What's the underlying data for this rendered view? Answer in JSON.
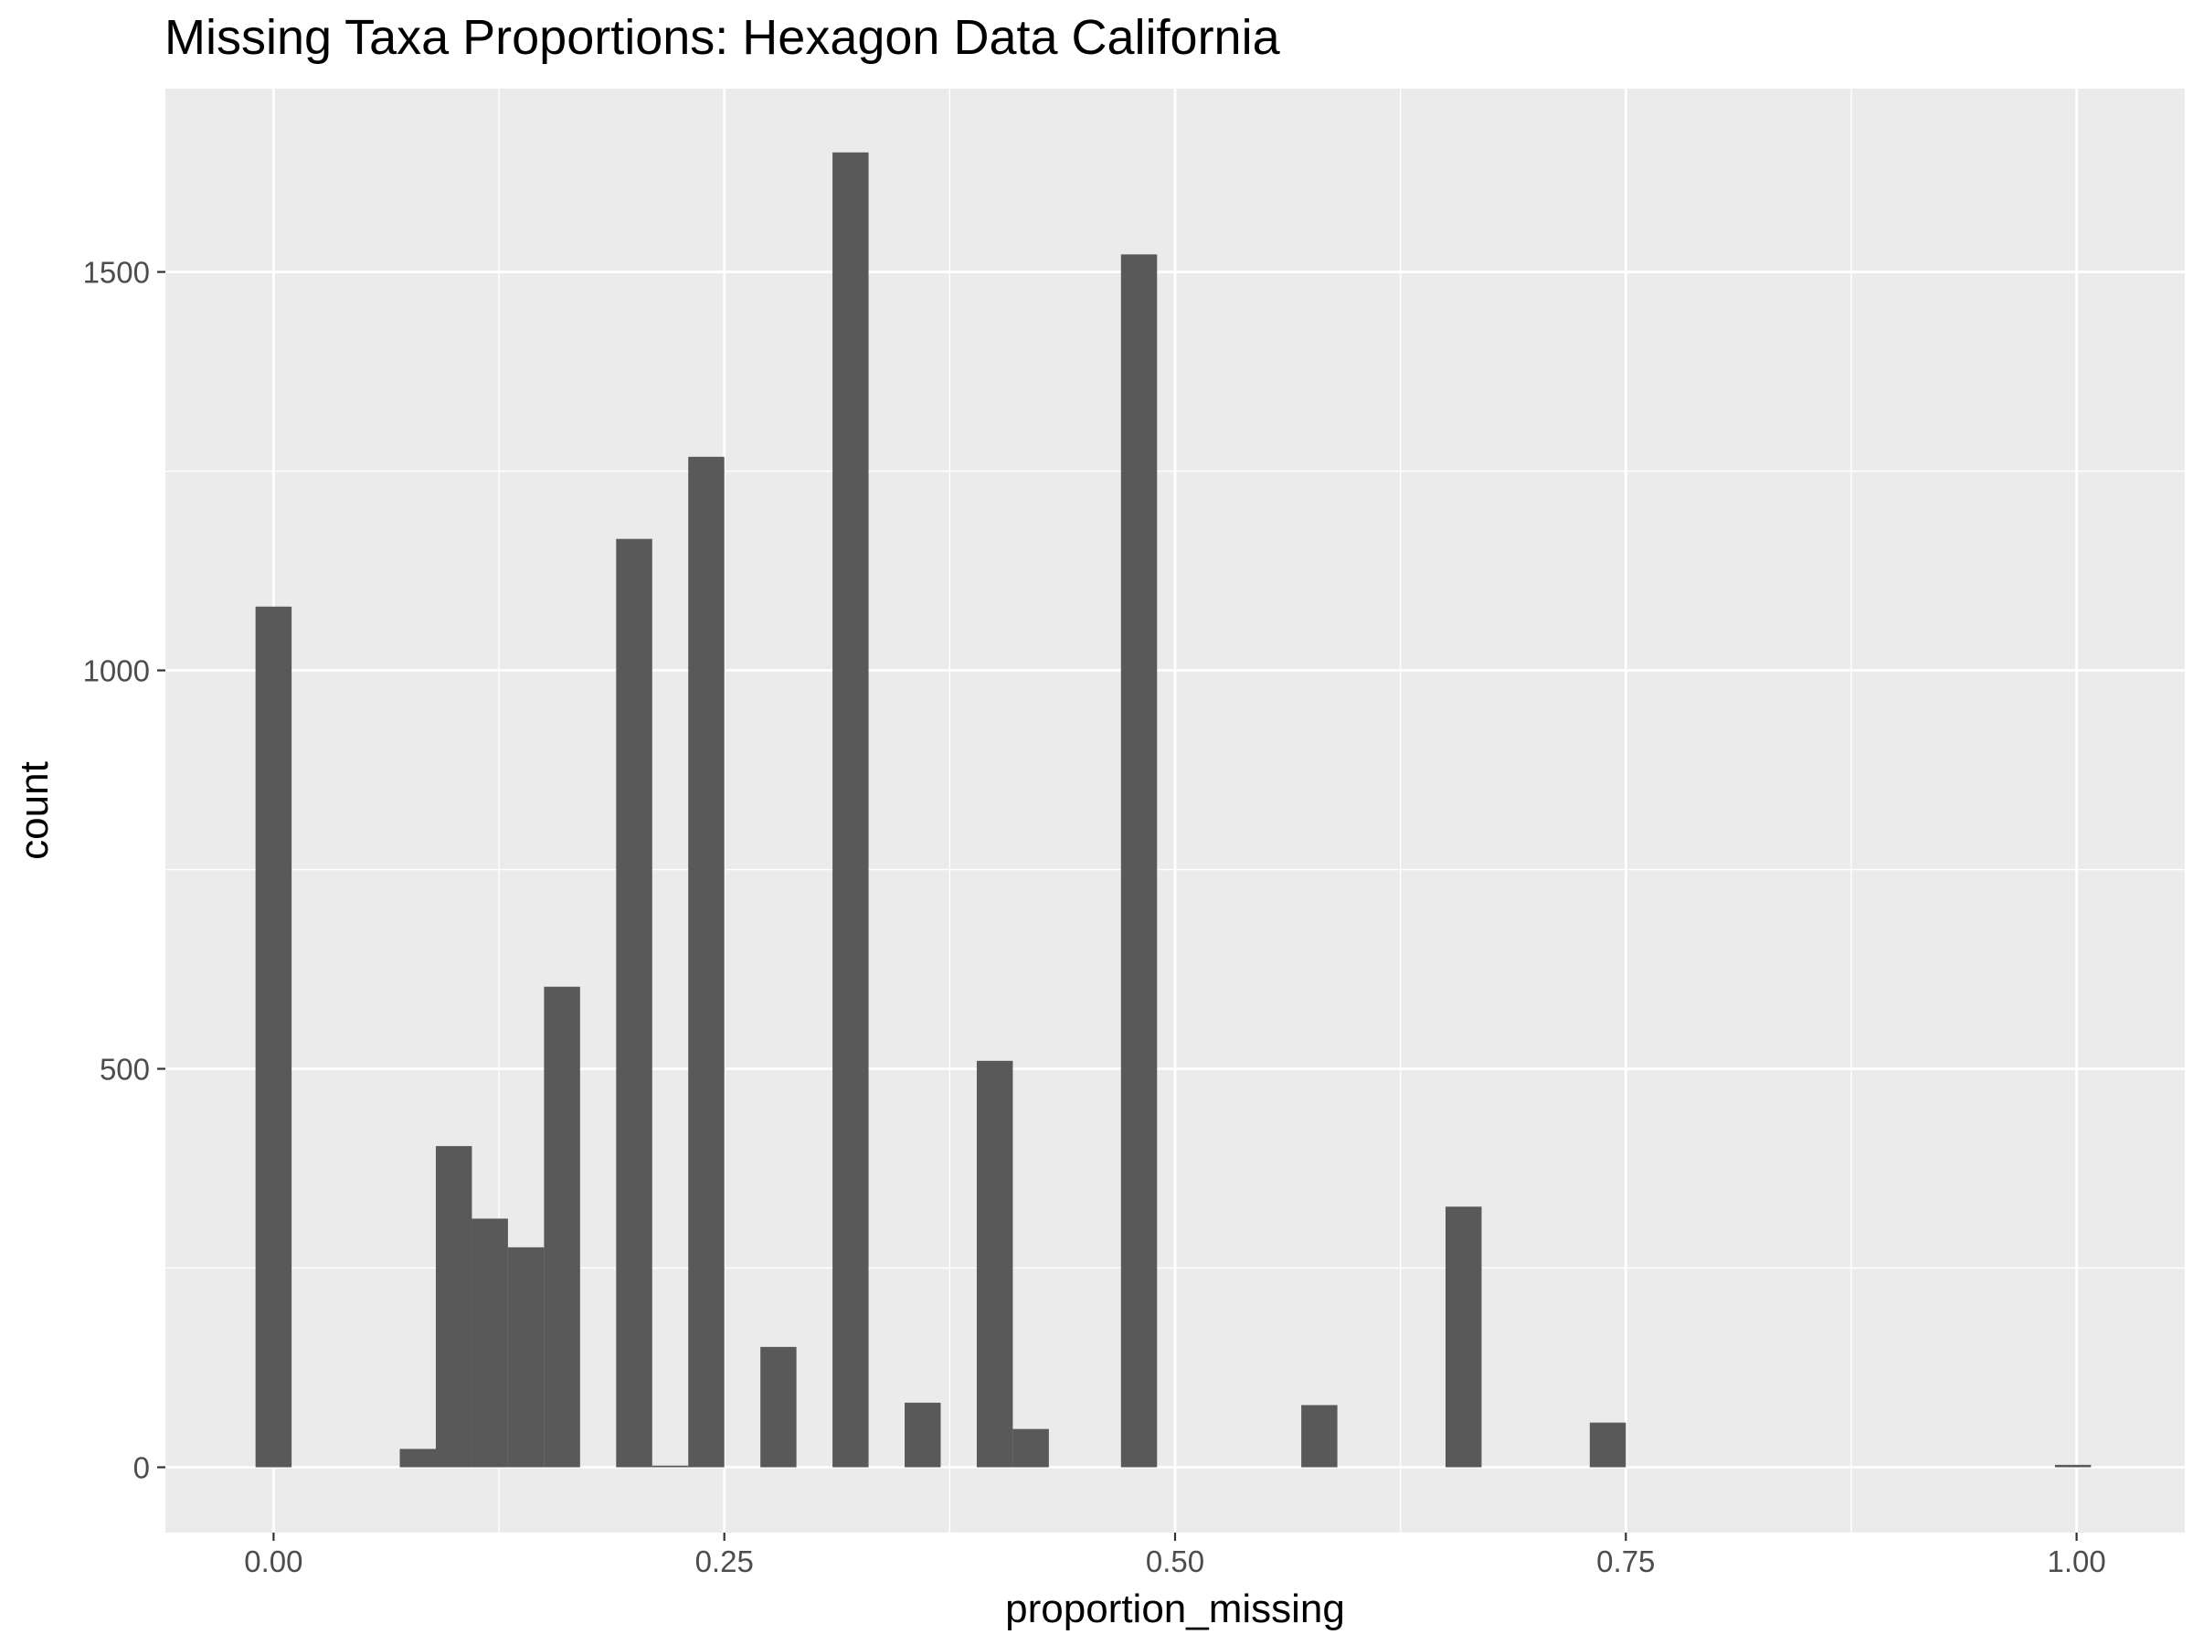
{
  "chart_data": {
    "type": "bar",
    "title": "Missing Taxa Proportions: Hexagon Data California",
    "xlabel": "proportion_missing",
    "ylabel": "count",
    "xlim": [
      -0.06,
      1.06
    ],
    "ylim": [
      -82,
      1730
    ],
    "bin_width": 0.02,
    "x_ticks": [
      0.0,
      0.25,
      0.5,
      0.75,
      1.0
    ],
    "x_tick_labels": [
      "0.00",
      "0.25",
      "0.50",
      "0.75",
      "1.00"
    ],
    "y_ticks": [
      0,
      500,
      1000,
      1500
    ],
    "y_tick_labels": [
      "0",
      "500",
      "1000",
      "1500"
    ],
    "grid": true,
    "legend": "none",
    "bins": [
      {
        "x": 0.0,
        "count": 1080
      },
      {
        "x": 0.08,
        "count": 23
      },
      {
        "x": 0.1,
        "count": 403
      },
      {
        "x": 0.12,
        "count": 312
      },
      {
        "x": 0.14,
        "count": 276
      },
      {
        "x": 0.16,
        "count": 603
      },
      {
        "x": 0.2,
        "count": 1165
      },
      {
        "x": 0.22,
        "count": 2
      },
      {
        "x": 0.24,
        "count": 1268
      },
      {
        "x": 0.28,
        "count": 151
      },
      {
        "x": 0.32,
        "count": 1650
      },
      {
        "x": 0.36,
        "count": 81
      },
      {
        "x": 0.4,
        "count": 510
      },
      {
        "x": 0.42,
        "count": 48
      },
      {
        "x": 0.48,
        "count": 1522
      },
      {
        "x": 0.58,
        "count": 78
      },
      {
        "x": 0.66,
        "count": 327
      },
      {
        "x": 0.74,
        "count": 56
      },
      {
        "x": 0.998,
        "count": 3
      }
    ],
    "colors": {
      "panel_background": "#ebebeb",
      "grid_major": "#ffffff",
      "bar_fill": "#595959",
      "tick_text": "#4d4d4d",
      "tick_mark": "#333333"
    }
  }
}
